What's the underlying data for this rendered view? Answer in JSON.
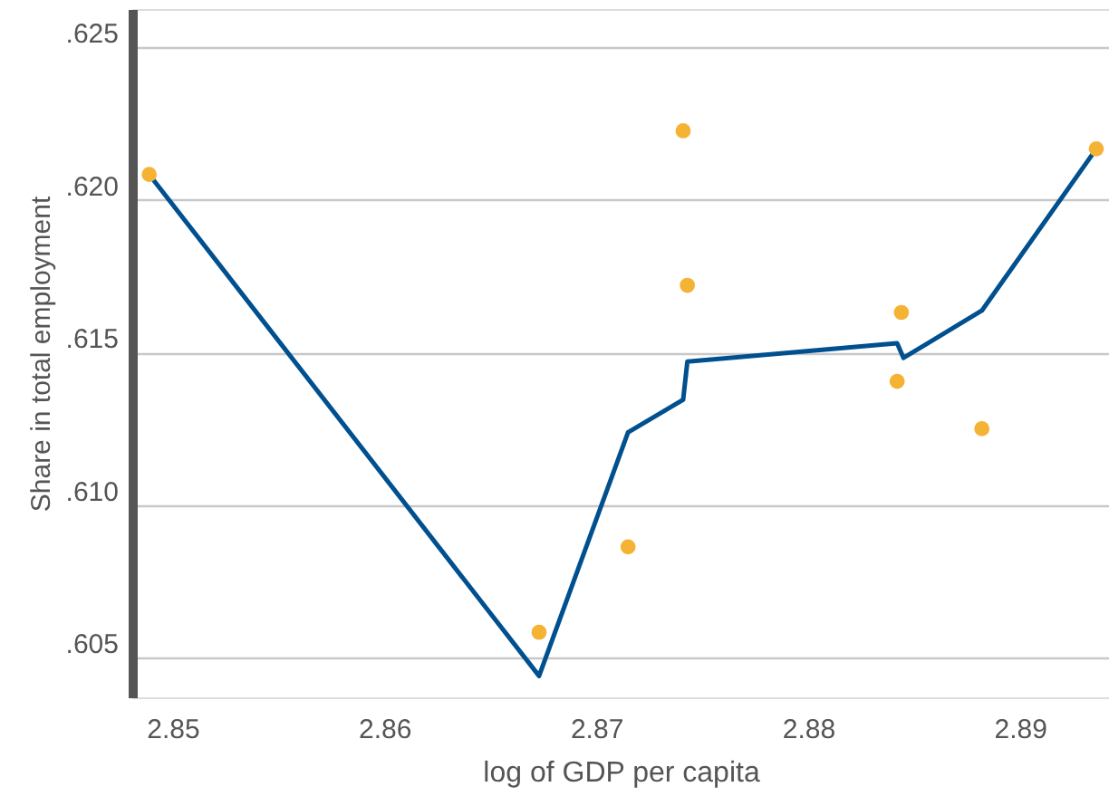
{
  "chart_data": {
    "type": "scatter",
    "xlabel": "log of GDP per capita",
    "ylabel": "Share in total employment",
    "xlim": [
      2.8481,
      2.8942
    ],
    "ylim": [
      0.6037,
      0.62625
    ],
    "xticks": [
      2.85,
      2.86,
      2.87,
      2.88,
      2.89
    ],
    "yticks": [
      {
        "value": 0.605,
        "label": ".605"
      },
      {
        "value": 0.61,
        "label": ".610"
      },
      {
        "value": 0.615,
        "label": ".615"
      },
      {
        "value": 0.62,
        "label": ".620"
      },
      {
        "value": 0.625,
        "label": ".625"
      }
    ],
    "grid": "y",
    "series": [
      {
        "color": "#f5b335",
        "marker": "circle",
        "x": [
          2.8489,
          2.8673,
          2.8715,
          2.8741,
          2.8743,
          2.8844,
          2.8842,
          2.8882,
          2.8936
        ],
        "values": [
          0.62083,
          0.60583,
          0.60863,
          0.62226,
          0.6172,
          0.61631,
          0.61405,
          0.6125,
          0.62167
        ]
      },
      {
        "type": "line",
        "color": "#00508f",
        "line_style": "solid",
        "x": [
          2.8489,
          2.8673,
          2.8715,
          2.8741,
          2.8743,
          2.8842,
          2.8845,
          2.8882,
          2.8936
        ],
        "values": [
          0.62083,
          0.6044,
          0.61238,
          0.61345,
          0.6147,
          0.6153,
          0.61482,
          0.61637,
          0.62167
        ]
      }
    ]
  }
}
